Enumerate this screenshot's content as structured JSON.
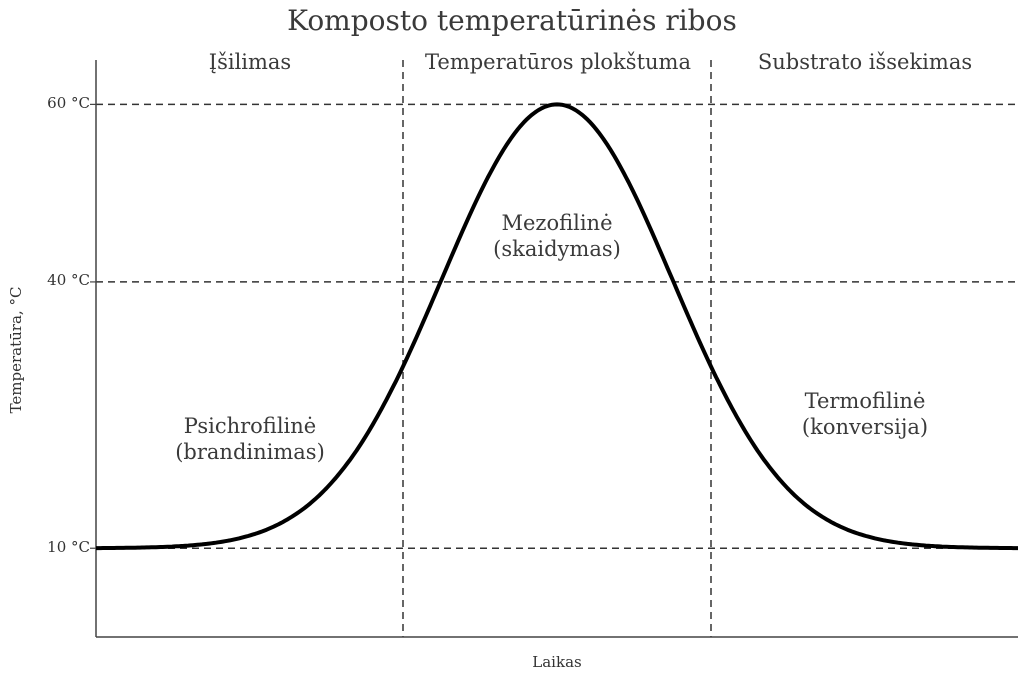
{
  "chart_data": {
    "type": "line",
    "title": "Komposto temperatūrinės ribos",
    "xlabel": "Laikas",
    "ylabel": "Temperatūra, °C",
    "ylim": [
      0,
      65
    ],
    "xlim": [
      0,
      1
    ],
    "yticks": [
      {
        "value": 60,
        "label": "60 °C"
      },
      {
        "value": 40,
        "label": "40 °C"
      },
      {
        "value": 10,
        "label": "10 °C"
      }
    ],
    "xticks": [],
    "grid": "dashed lines at y ticks and at region boundaries",
    "series": [
      {
        "name": "Temperatūra",
        "shape": "gaussian bell",
        "baseline": 10,
        "peak": 60,
        "peak_x": 0.5,
        "x": [
          0.0,
          0.1,
          0.2,
          0.25,
          0.3,
          0.35,
          0.4,
          0.45,
          0.5,
          0.55,
          0.6,
          0.65,
          0.7,
          0.75,
          0.8,
          0.9,
          1.0
        ],
        "values": [
          10.0,
          10.3,
          13.5,
          18.2,
          26.9,
          38.8,
          51.0,
          58.6,
          60.0,
          58.6,
          51.0,
          38.8,
          26.9,
          18.2,
          13.5,
          10.3,
          10.0
        ],
        "color": "#000000"
      }
    ],
    "regions": [
      {
        "label": "Įšilimas",
        "x_start": 0.0,
        "x_end": 0.333
      },
      {
        "label": "Temperatūros plokštuma",
        "x_start": 0.333,
        "x_end": 0.667
      },
      {
        "label": "Substrato išsekimas",
        "x_start": 0.667,
        "x_end": 1.0
      }
    ],
    "annotations": [
      {
        "line1": "Psichrofilinė",
        "line2": "(brandinimas)"
      },
      {
        "line1": "Mezofilinė",
        "line2": "(skaidymas)"
      },
      {
        "line1": "Termofilinė",
        "line2": "(konversija)"
      }
    ],
    "legend": null
  },
  "colors": {
    "curve": "#000000",
    "grid": "#333333",
    "axis": "#444444",
    "text": "#3a3a3a"
  }
}
